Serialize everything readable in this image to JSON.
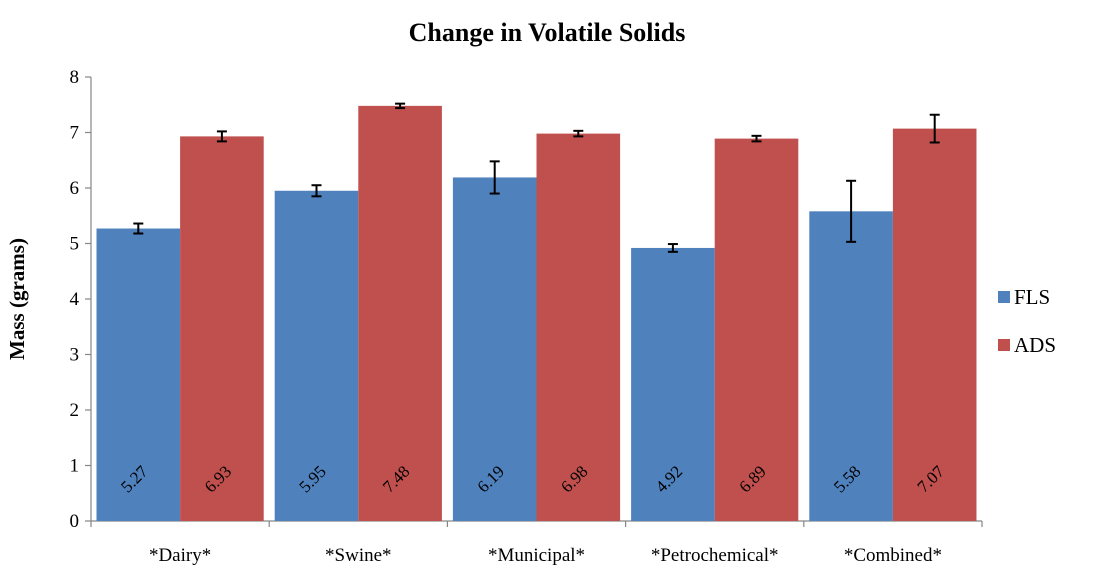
{
  "chart_data": {
    "type": "bar",
    "title": "Change in Volatile Solids",
    "xlabel": "",
    "ylabel": "Mass (grams)",
    "ylim": [
      0,
      8
    ],
    "yticks": [
      0,
      1,
      2,
      3,
      4,
      5,
      6,
      7,
      8
    ],
    "categories": [
      "*Dairy*",
      "*Swine*",
      "*Municipal*",
      "*Petrochemical*",
      "*Combined*"
    ],
    "series": [
      {
        "name": "FLS",
        "color": "#4F81BD",
        "values": [
          5.27,
          5.95,
          6.19,
          4.92,
          5.58
        ],
        "labels": [
          "5.27",
          "5.95",
          "6.19",
          "4.92",
          "5.58"
        ],
        "errors": [
          0.09,
          0.1,
          0.29,
          0.07,
          0.55
        ]
      },
      {
        "name": "ADS",
        "color": "#C0504D",
        "values": [
          6.93,
          7.48,
          6.98,
          6.89,
          7.07
        ],
        "labels": [
          "6.93",
          "7.48",
          "6.98",
          "6.89",
          "7.07"
        ],
        "errors": [
          0.09,
          0.04,
          0.05,
          0.05,
          0.25
        ]
      }
    ],
    "legend": "right",
    "grid": false
  }
}
